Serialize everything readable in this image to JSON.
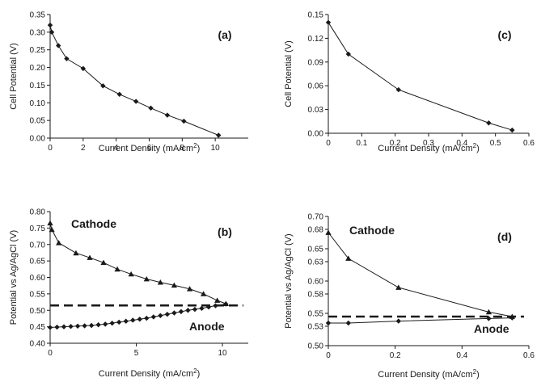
{
  "chart_data": [
    {
      "id": "a",
      "type": "line",
      "panel_label": "(a)",
      "xlabel": "Current Density (mA/cm",
      "xlabel_sup": "2",
      "xlabel_close": ")",
      "ylabel": "Cell Potential (V)",
      "xlim": [
        0,
        12
      ],
      "ylim": [
        0,
        0.35
      ],
      "xticks": [
        0,
        2,
        4,
        6,
        8,
        10
      ],
      "yticks": [
        0.0,
        0.05,
        0.1,
        0.15,
        0.2,
        0.25,
        0.3,
        0.35
      ],
      "ytick_labels": [
        "0.00",
        "0.05",
        "0.10",
        "0.15",
        "0.20",
        "0.25",
        "0.30",
        "0.35"
      ],
      "xtick_labels": [
        "0",
        "2",
        "4",
        "6",
        "8",
        "10"
      ],
      "grid": false,
      "series": [
        {
          "marker": "diamond",
          "x": [
            0,
            0.1,
            0.5,
            1.0,
            2.0,
            3.2,
            4.2,
            5.2,
            6.1,
            7.1,
            8.1,
            10.2
          ],
          "y": [
            0.32,
            0.3,
            0.262,
            0.225,
            0.197,
            0.148,
            0.124,
            0.104,
            0.085,
            0.065,
            0.048,
            0.008
          ]
        }
      ]
    },
    {
      "id": "b",
      "type": "line",
      "panel_label": "(b)",
      "xlabel": "Current Density (mA/cm",
      "xlabel_sup": "2",
      "xlabel_close": ")",
      "ylabel": "Potential vs Ag/AgCl (V)",
      "xlim": [
        0,
        11.5
      ],
      "ylim": [
        0.4,
        0.8
      ],
      "xticks": [
        0,
        5,
        10
      ],
      "xtick_labels": [
        "0",
        "5",
        "10"
      ],
      "yticks": [
        0.4,
        0.45,
        0.5,
        0.55,
        0.6,
        0.65,
        0.7,
        0.75,
        0.8
      ],
      "ytick_labels": [
        "0.40",
        "0.45",
        "0.50",
        "0.55",
        "0.60",
        "0.65",
        "0.70",
        "0.75",
        "0.80"
      ],
      "grid": false,
      "reference_line": 0.515,
      "series": [
        {
          "name": "Cathode",
          "marker": "triangle",
          "x": [
            0,
            0.1,
            0.5,
            1.5,
            2.3,
            3.1,
            3.9,
            4.7,
            5.6,
            6.4,
            7.2,
            8.1,
            8.9,
            9.7,
            10.2
          ],
          "y": [
            0.765,
            0.745,
            0.705,
            0.674,
            0.66,
            0.645,
            0.625,
            0.61,
            0.595,
            0.585,
            0.576,
            0.565,
            0.55,
            0.53,
            0.52
          ]
        },
        {
          "name": "Anode",
          "marker": "diamond",
          "x": [
            0,
            0.4,
            0.8,
            1.2,
            1.6,
            2.0,
            2.4,
            2.8,
            3.2,
            3.6,
            4.0,
            4.4,
            4.8,
            5.2,
            5.6,
            6.0,
            6.4,
            6.8,
            7.2,
            7.6,
            8.0,
            8.4,
            8.8,
            9.2,
            9.6,
            10.2
          ],
          "y": [
            0.448,
            0.449,
            0.45,
            0.451,
            0.452,
            0.453,
            0.454,
            0.456,
            0.458,
            0.461,
            0.464,
            0.467,
            0.47,
            0.473,
            0.476,
            0.48,
            0.484,
            0.488,
            0.492,
            0.496,
            0.5,
            0.503,
            0.506,
            0.51,
            0.514,
            0.519
          ]
        }
      ],
      "annotations": [
        "Cathode",
        "Anode"
      ]
    },
    {
      "id": "c",
      "type": "line",
      "panel_label": "(c)",
      "xlabel": "Current Density (mA/cm",
      "xlabel_sup": "2",
      "xlabel_close": ")",
      "ylabel": "Cell Potential (V)",
      "xlim": [
        0,
        0.6
      ],
      "ylim": [
        0,
        0.15
      ],
      "xticks": [
        0,
        0.1,
        0.2,
        0.3,
        0.4,
        0.5,
        0.6
      ],
      "xtick_labels": [
        "0",
        "0.1",
        "0.2",
        "0.3",
        "0.4",
        "0.5",
        "0.6"
      ],
      "yticks": [
        0.0,
        0.03,
        0.06,
        0.09,
        0.12,
        0.15
      ],
      "ytick_labels": [
        "0.00",
        "0.03",
        "0.06",
        "0.09",
        "0.12",
        "0.15"
      ],
      "grid": false,
      "series": [
        {
          "marker": "diamond",
          "x": [
            0,
            0.06,
            0.21,
            0.48,
            0.55
          ],
          "y": [
            0.14,
            0.1,
            0.055,
            0.013,
            0.004
          ]
        }
      ]
    },
    {
      "id": "d",
      "type": "line",
      "panel_label": "(d)",
      "xlabel": "Current Density (mA/cm",
      "xlabel_sup": "2",
      "xlabel_close": ")",
      "ylabel": "Potential vs Ag/AgCl (V)",
      "xlim": [
        0,
        0.6
      ],
      "ylim": [
        0.5,
        0.7
      ],
      "xticks": [
        0,
        0.2,
        0.4,
        0.6
      ],
      "xtick_labels": [
        "0",
        "0.2",
        "0.4",
        "0.6"
      ],
      "yticks": [
        0.5,
        0.53,
        0.55,
        0.58,
        0.6,
        0.63,
        0.65,
        0.68,
        0.7
      ],
      "ytick_labels": [
        "0.50",
        "0.53",
        "0.55",
        "0.58",
        "0.60",
        "0.63",
        "0.65",
        "0.68",
        "0.70"
      ],
      "grid": false,
      "reference_line": 0.545,
      "series": [
        {
          "name": "Cathode",
          "marker": "triangle",
          "x": [
            0,
            0.06,
            0.21,
            0.48,
            0.55
          ],
          "y": [
            0.675,
            0.635,
            0.59,
            0.552,
            0.545
          ]
        },
        {
          "name": "Anode",
          "marker": "diamond",
          "x": [
            0,
            0.06,
            0.21,
            0.48,
            0.55
          ],
          "y": [
            0.535,
            0.535,
            0.538,
            0.542,
            0.543
          ]
        }
      ],
      "annotations": [
        "Cathode",
        "Anode"
      ]
    }
  ]
}
